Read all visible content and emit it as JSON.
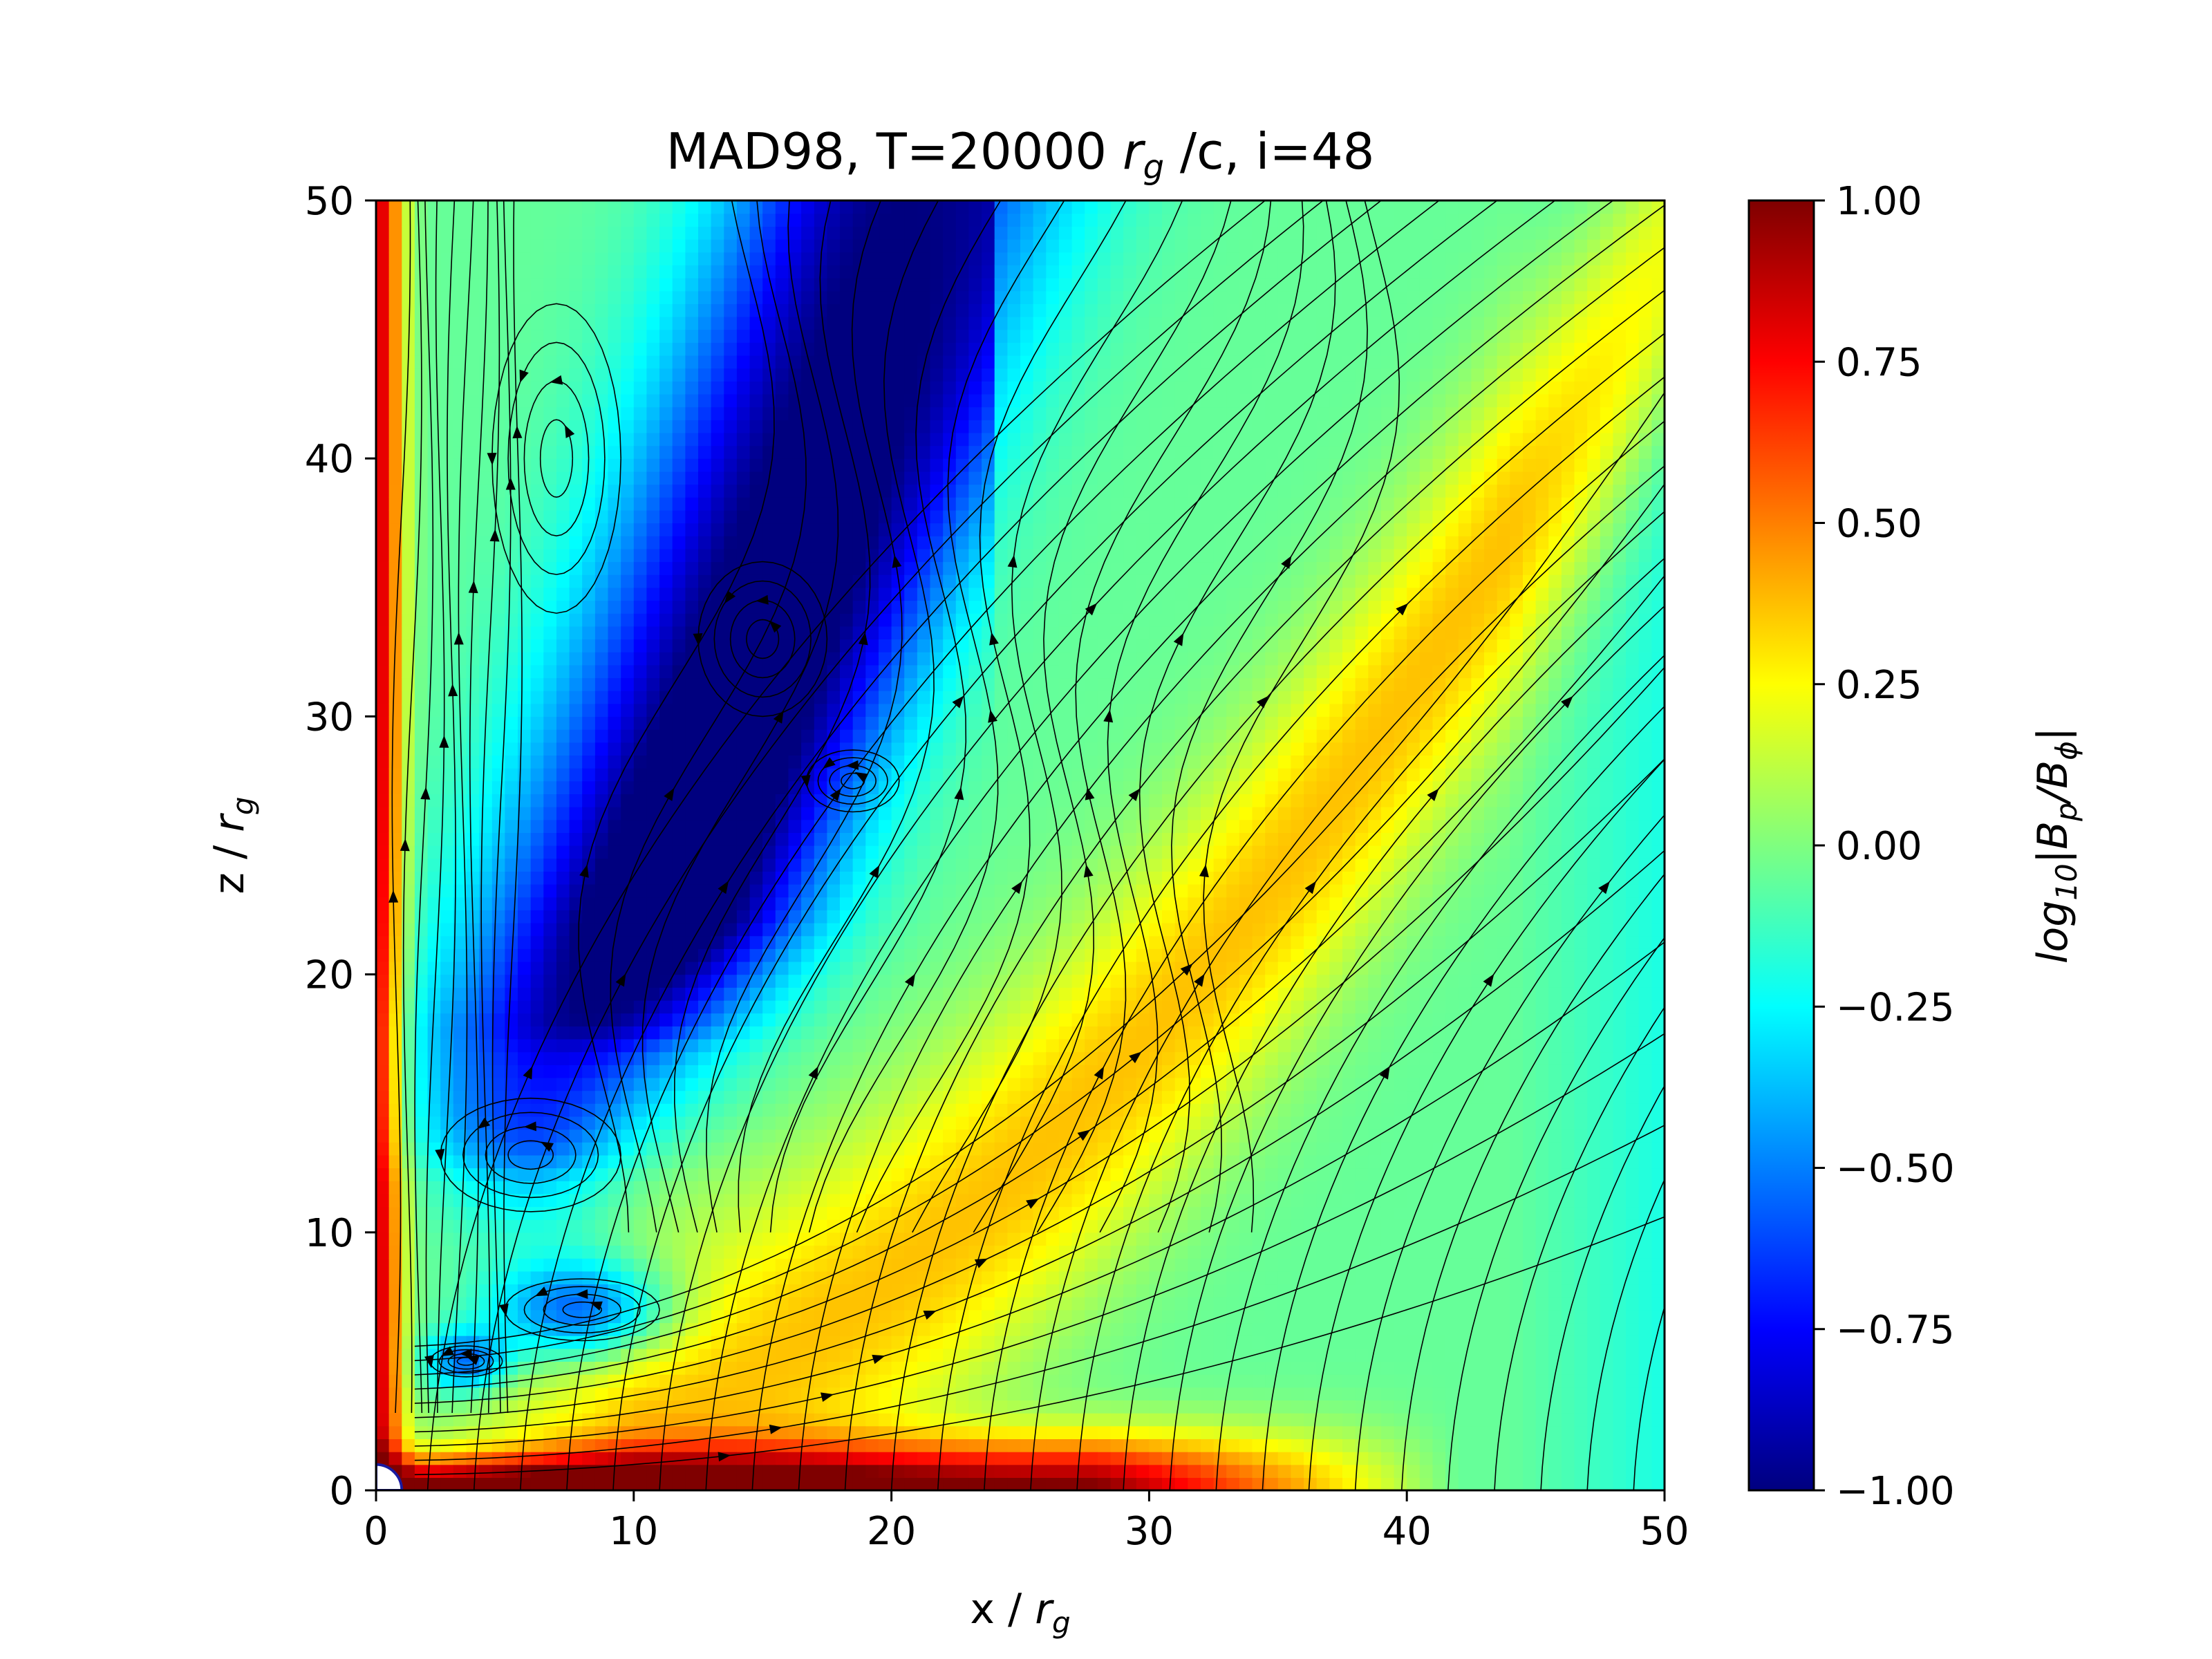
{
  "chart_data": {
    "type": "heatmap",
    "title": {
      "prefix": "MAD98, T=20000 ",
      "var": "r",
      "sub": "g",
      "suffix": " /c, i=48"
    },
    "xlabel": {
      "prefix": "x / ",
      "var": "r",
      "sub": "g"
    },
    "ylabel": {
      "prefix": "z / ",
      "var": "r",
      "sub": "g"
    },
    "colorbar_label": {
      "p1": "log",
      "s1": "10",
      "p2": "|B",
      "s2": "p",
      "p3": "/B",
      "s3": "ϕ",
      "p4": "|"
    },
    "xlim": [
      0,
      50
    ],
    "ylim": [
      0,
      50
    ],
    "xticks": [
      0,
      10,
      20,
      30,
      40,
      50
    ],
    "yticks": [
      0,
      10,
      20,
      30,
      40,
      50
    ],
    "xtick_labels": [
      "0",
      "10",
      "20",
      "30",
      "40",
      "50"
    ],
    "ytick_labels": [
      "0",
      "10",
      "20",
      "30",
      "40",
      "50"
    ],
    "colorbar_range": [
      -1.0,
      1.0
    ],
    "colorbar_ticks": [
      -1.0,
      -0.75,
      -0.5,
      -0.25,
      0.0,
      0.25,
      0.5,
      0.75,
      1.0
    ],
    "colorbar_tick_labels": [
      "−1.00",
      "−0.75",
      "−0.50",
      "−0.25",
      "0.00",
      "0.25",
      "0.50",
      "0.75",
      "1.00"
    ],
    "colormap": "jet",
    "colormap_stops": [
      "#00007f",
      "#0000ff",
      "#007fff",
      "#00ffff",
      "#7fff7f",
      "#ffff00",
      "#ff7f00",
      "#ff0000",
      "#7f0000"
    ],
    "grid": false,
    "overlay": "poloidal magnetic field streamlines (black)",
    "horizon_radius": 1.0
  }
}
